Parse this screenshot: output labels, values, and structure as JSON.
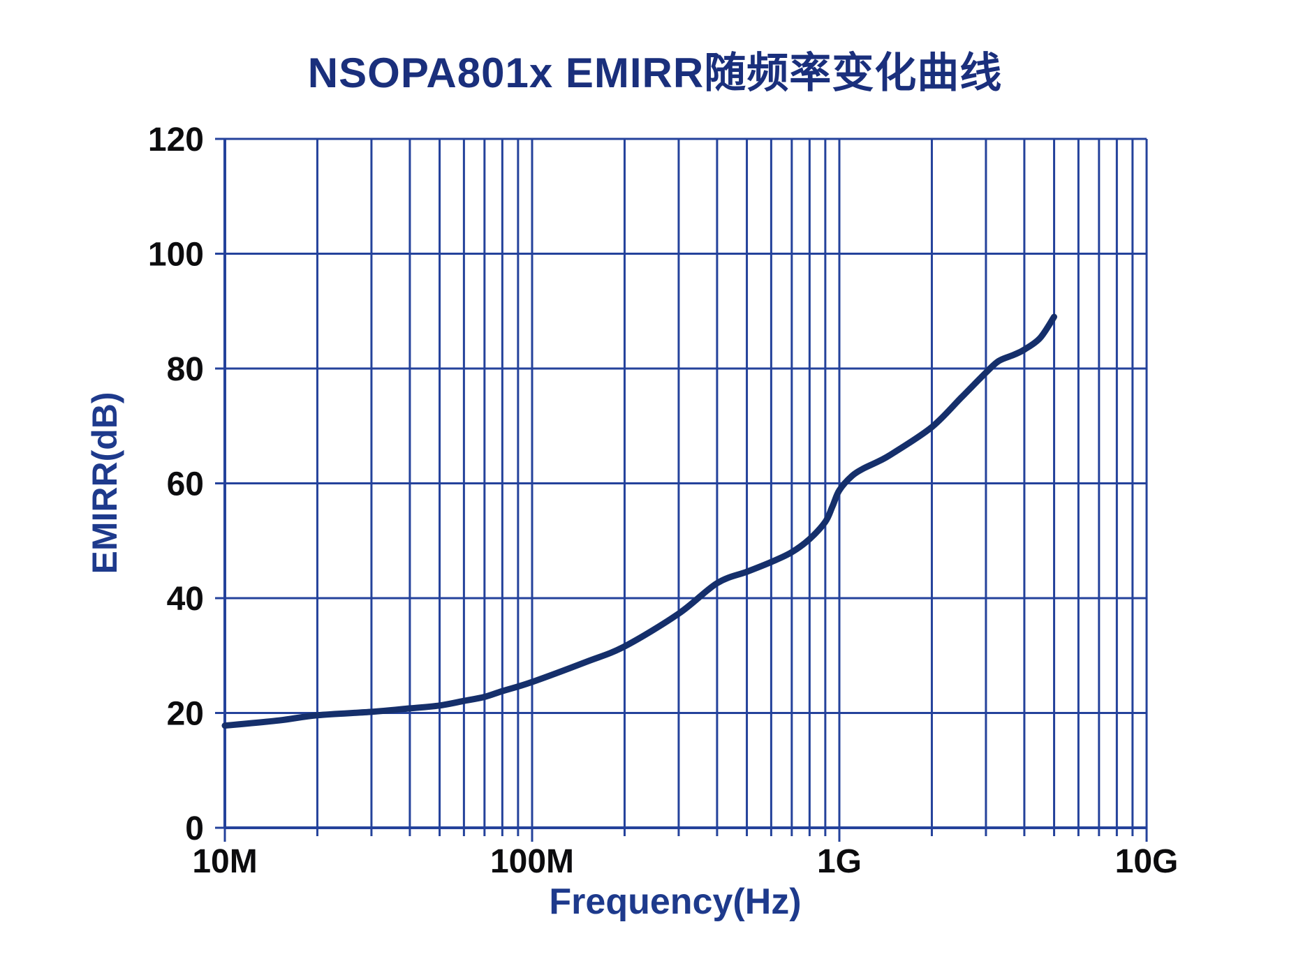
{
  "chart_data": {
    "type": "line",
    "title": "NSOPA801x EMIRR随频率变化曲线",
    "xlabel": "Frequency(Hz)",
    "ylabel": "EMIRR(dB)",
    "x_scale": "log",
    "x_range": [
      10000000,
      10000000000
    ],
    "y_range": [
      0,
      120
    ],
    "y_tick_step": 20,
    "grid": {
      "major": true,
      "minor_x": true,
      "legend": "none"
    },
    "x_ticks": [
      {
        "value": 10000000,
        "label": "10M"
      },
      {
        "value": 100000000,
        "label": "100M"
      },
      {
        "value": 1000000000,
        "label": "1G"
      },
      {
        "value": 10000000000,
        "label": "10G"
      }
    ],
    "y_ticks": [
      {
        "value": 0,
        "label": "0"
      },
      {
        "value": 20,
        "label": "20"
      },
      {
        "value": 40,
        "label": "40"
      },
      {
        "value": 60,
        "label": "60"
      },
      {
        "value": 80,
        "label": "80"
      },
      {
        "value": 100,
        "label": "100"
      },
      {
        "value": 120,
        "label": "120"
      }
    ],
    "series": [
      {
        "points": [
          [
            10000000,
            17.8
          ],
          [
            15000000,
            18.7
          ],
          [
            20000000,
            19.6
          ],
          [
            30000000,
            20.2
          ],
          [
            40000000,
            20.8
          ],
          [
            50000000,
            21.3
          ],
          [
            60000000,
            22.1
          ],
          [
            70000000,
            22.8
          ],
          [
            80000000,
            23.8
          ],
          [
            100000000,
            25.4
          ],
          [
            150000000,
            28.9
          ],
          [
            200000000,
            31.6
          ],
          [
            300000000,
            37.3
          ],
          [
            400000000,
            42.6
          ],
          [
            500000000,
            44.6
          ],
          [
            600000000,
            46.3
          ],
          [
            700000000,
            48.0
          ],
          [
            800000000,
            50.3
          ],
          [
            900000000,
            53.3
          ],
          [
            950000000,
            56.0
          ],
          [
            1000000000,
            58.8
          ],
          [
            1100000000,
            61.3
          ],
          [
            1200000000,
            62.6
          ],
          [
            1350000000,
            63.9
          ],
          [
            1500000000,
            65.3
          ],
          [
            2000000000,
            69.8
          ],
          [
            2500000000,
            75.0
          ],
          [
            3000000000,
            79.3
          ],
          [
            3300000000,
            81.3
          ],
          [
            3700000000,
            82.4
          ],
          [
            4000000000,
            83.3
          ],
          [
            4500000000,
            85.3
          ],
          [
            5000000000,
            89.0
          ]
        ]
      }
    ]
  },
  "colors": {
    "background": "#ffffff",
    "grid": "#24429b",
    "axis": "#24429b",
    "curve": "#152f6b",
    "title": "#1a2f7c",
    "axis_label": "#1e3a8c",
    "tick_label": "#0c0c0e"
  }
}
